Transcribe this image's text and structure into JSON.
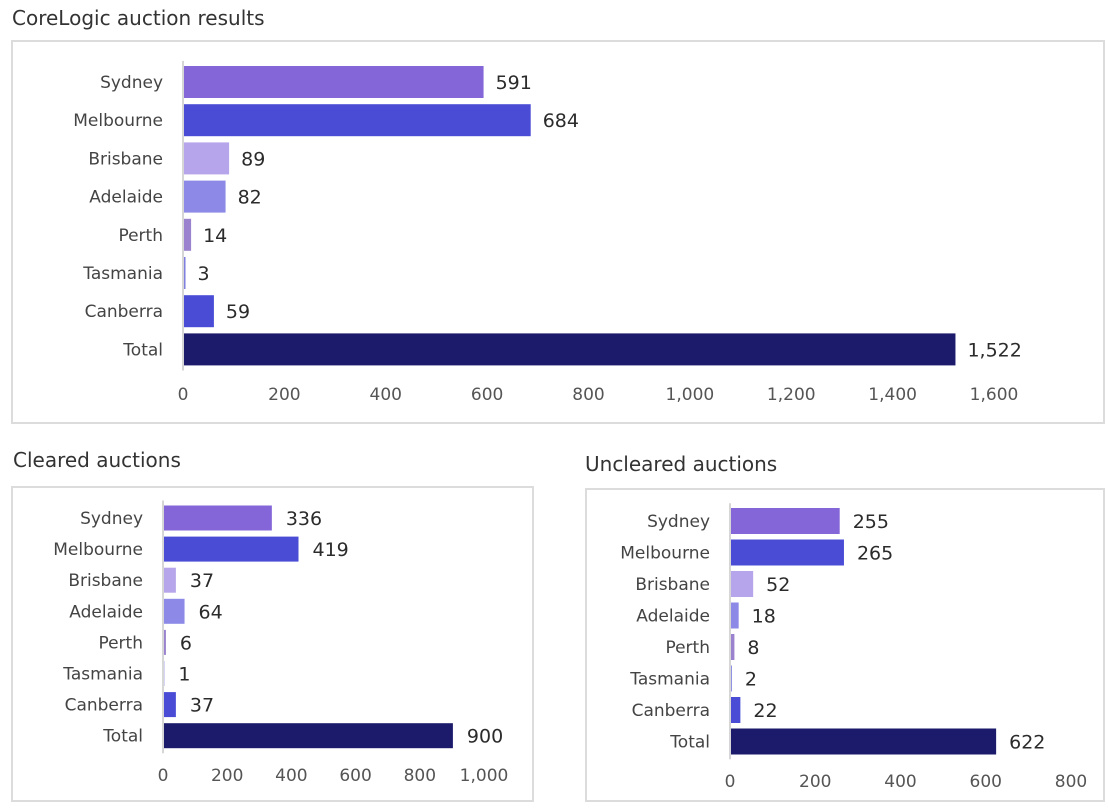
{
  "colors": {
    "Sydney": "#8466d8",
    "Melbourne": "#4a4cd6",
    "Brisbane": "#b6a5ea",
    "Adelaide": "#8c8ae6",
    "Perth": "#9a82cf",
    "Tasmania": "#7f7fe0",
    "Canberra": "#4a4cd6",
    "Total": "#1b1a6b"
  },
  "chart_data": [
    {
      "type": "bar",
      "orientation": "horizontal",
      "title": "CoreLogic auction results",
      "categories": [
        "Sydney",
        "Melbourne",
        "Brisbane",
        "Adelaide",
        "Perth",
        "Tasmania",
        "Canberra",
        "Total"
      ],
      "values": [
        591,
        684,
        89,
        82,
        14,
        3,
        59,
        1522
      ],
      "value_labels": [
        "591",
        "684",
        "89",
        "82",
        "14",
        "3",
        "59",
        "1,522"
      ],
      "xlim": [
        0,
        1600
      ],
      "ticks": [
        0,
        200,
        400,
        600,
        800,
        1000,
        1200,
        1400,
        1600
      ],
      "tick_labels": [
        "0",
        "200",
        "400",
        "600",
        "800",
        "1,000",
        "1,200",
        "1,400",
        "1,600"
      ],
      "grid": false,
      "legend": "none"
    },
    {
      "type": "bar",
      "orientation": "horizontal",
      "title": "Cleared auctions",
      "categories": [
        "Sydney",
        "Melbourne",
        "Brisbane",
        "Adelaide",
        "Perth",
        "Tasmania",
        "Canberra",
        "Total"
      ],
      "values": [
        336,
        419,
        37,
        64,
        6,
        1,
        37,
        900
      ],
      "value_labels": [
        "336",
        "419",
        "37",
        "64",
        "6",
        "1",
        "37",
        "900"
      ],
      "xlim": [
        0,
        1000
      ],
      "ticks": [
        0,
        200,
        400,
        600,
        800,
        1000
      ],
      "tick_labels": [
        "0",
        "200",
        "400",
        "600",
        "800",
        "1,000"
      ],
      "grid": false,
      "legend": "none"
    },
    {
      "type": "bar",
      "orientation": "horizontal",
      "title": "Uncleared auctions",
      "categories": [
        "Sydney",
        "Melbourne",
        "Brisbane",
        "Adelaide",
        "Perth",
        "Tasmania",
        "Canberra",
        "Total"
      ],
      "values": [
        255,
        265,
        52,
        18,
        8,
        2,
        22,
        622
      ],
      "value_labels": [
        "255",
        "265",
        "52",
        "18",
        "8",
        "2",
        "22",
        "622"
      ],
      "xlim": [
        0,
        800
      ],
      "ticks": [
        0,
        200,
        400,
        600,
        800
      ],
      "tick_labels": [
        "0",
        "200",
        "400",
        "600",
        "800"
      ],
      "grid": false,
      "legend": "none"
    }
  ]
}
